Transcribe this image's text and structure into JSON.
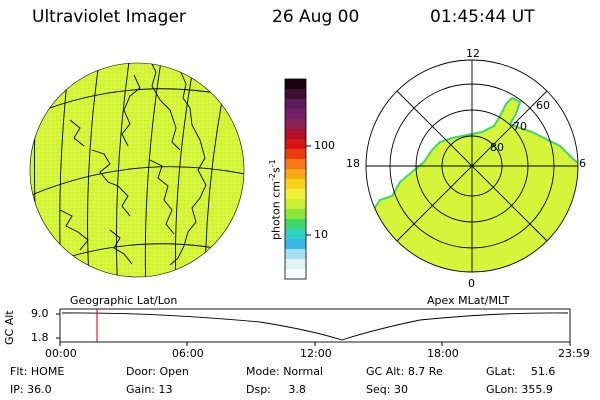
{
  "header": {
    "title": "Ultraviolet Imager",
    "date": "26 Aug 00",
    "time": "01:45:44 UT"
  },
  "geo_panel": {
    "caption": "Geographic Lat/Lon",
    "fill_color": "#d6f53a"
  },
  "color_bar": {
    "unit": "photon cm",
    "unit_exp1": "-2",
    "unit_mid": "s",
    "unit_exp2": "-1",
    "tick_high": "100",
    "tick_low": "10",
    "colors": [
      "#1a0010",
      "#3b0f32",
      "#5a1e5c",
      "#72206a",
      "#8a1f52",
      "#b0102a",
      "#d81414",
      "#ee3a10",
      "#f6781a",
      "#f9a817",
      "#fbd11c",
      "#f3ee3a",
      "#c9f032",
      "#8fe63a",
      "#3fd66a",
      "#2ed3c8",
      "#3bb7e4",
      "#a6dff0",
      "#e2f2f6",
      "#f8fbfb"
    ]
  },
  "apex_panel": {
    "caption": "Apex MLat/MLT",
    "mlt_top": "12",
    "mlt_left": "18",
    "mlt_right": "6",
    "mlt_bottom": "0",
    "lat_60": "60",
    "lat_70": "70",
    "lat_80": "80"
  },
  "timeline": {
    "axis_label": "GC Alt",
    "y_top": "9.0",
    "y_bottom": "1.8",
    "ticks": [
      "00:00",
      "06:00",
      "12:00",
      "18:00",
      "23:59"
    ],
    "marker_color": "#d00000"
  },
  "status": {
    "flt_label": "Flt:",
    "flt_value": "HOME",
    "ip_label": "IP:",
    "ip_value": "36.0",
    "door_label": "Door:",
    "door_value": "Open",
    "gain_label": "Gain:",
    "gain_value": "13",
    "mode_label": "Mode:",
    "mode_value": "Normal",
    "dsp_label": "Dsp:",
    "dsp_value": "3.8",
    "gcalt_label": "GC Alt:",
    "gcalt_value": "8.7 Re",
    "seq_label": "Seq:",
    "seq_value": "30",
    "glat_label": "GLat:",
    "glat_value": "51.6",
    "glon_label": "GLon:",
    "glon_value": "355.9"
  }
}
